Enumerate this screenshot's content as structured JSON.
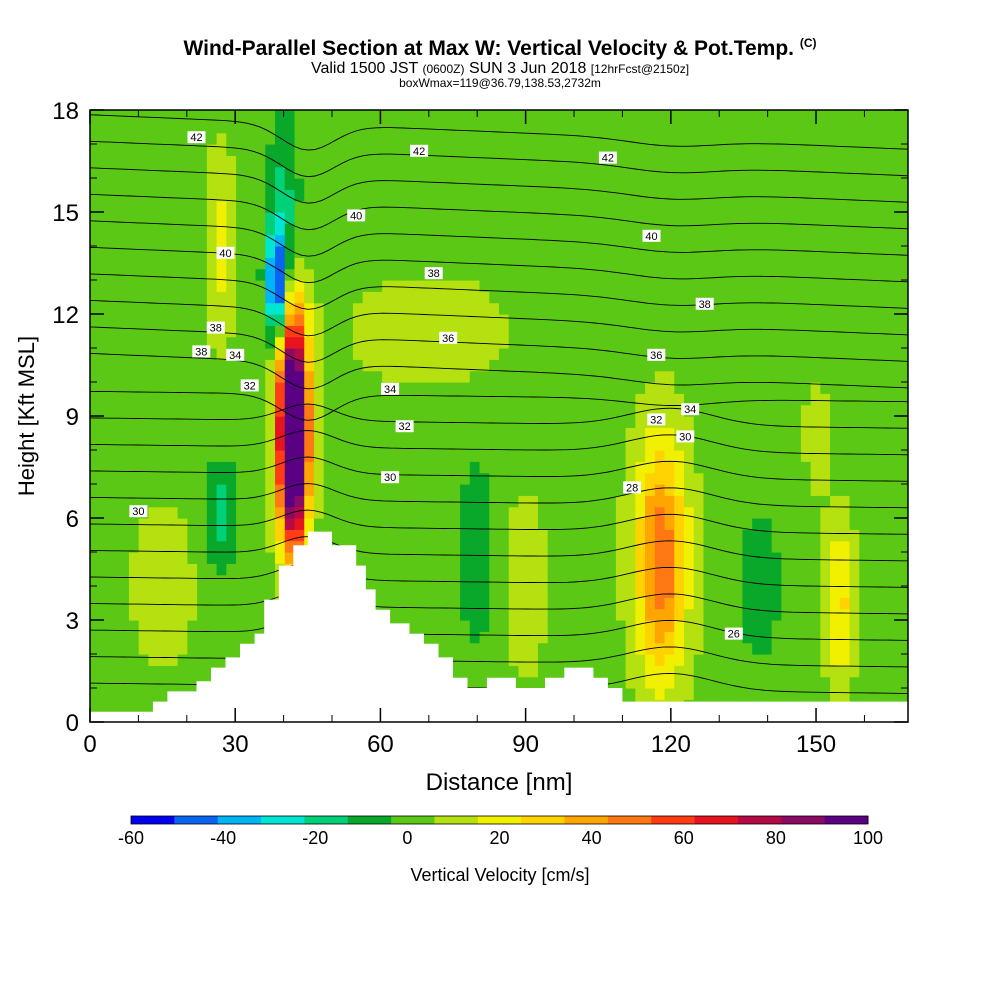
{
  "header": {
    "title": "Wind-Parallel Section at Max W: Vertical Velocity & Pot.Temp.",
    "copyright": "(C)",
    "valid_a": "Valid 1500 JST",
    "valid_b": "(0600Z)",
    "valid_c": "SUN 3 Jun 2018",
    "valid_d": "[12hrFcst@2150z]",
    "boxwmax": "boxWmax=119@36.79,138.53,2732m"
  },
  "chart_data": {
    "type": "heatmap",
    "xlabel": "Distance [nm]",
    "ylabel": "Height [Kft MSL]",
    "xlim": [
      0,
      169
    ],
    "ylim": [
      0,
      18
    ],
    "x_ticks": [
      0,
      30,
      60,
      90,
      120,
      150
    ],
    "y_ticks": [
      0,
      3,
      6,
      9,
      12,
      15,
      18
    ],
    "terrain": {
      "x": [
        0,
        13,
        13,
        16,
        16,
        22,
        22,
        25,
        25,
        28,
        28,
        31,
        31,
        34,
        34,
        36,
        36,
        39,
        39,
        42,
        42,
        45,
        45,
        50,
        50,
        55,
        55,
        57,
        57,
        59,
        59,
        62,
        62,
        66,
        66,
        69,
        69,
        72,
        72,
        75,
        75,
        78,
        78,
        82,
        82,
        88,
        88,
        94,
        94,
        98,
        98,
        104,
        104,
        107,
        107,
        110,
        110,
        169
      ],
      "h": [
        0.3,
        0.3,
        0.6,
        0.6,
        0.9,
        0.9,
        1.2,
        1.2,
        1.6,
        1.6,
        1.9,
        1.9,
        2.3,
        2.3,
        2.6,
        2.6,
        3.6,
        3.6,
        4.6,
        4.6,
        5.2,
        5.2,
        5.6,
        5.6,
        5.2,
        5.2,
        4.6,
        4.6,
        3.9,
        3.9,
        3.3,
        3.3,
        2.9,
        2.9,
        2.6,
        2.6,
        2.3,
        2.3,
        1.9,
        1.9,
        1.3,
        1.3,
        1.0,
        1.0,
        1.3,
        1.3,
        1.0,
        1.0,
        1.3,
        1.3,
        1.6,
        1.6,
        1.3,
        1.3,
        1.0,
        1.0,
        0.6,
        0.6
      ]
    },
    "vertical_velocity_features": [
      {
        "x": 42,
        "z": 8.5,
        "w": 110,
        "rx": 2.5,
        "rz": 3.0
      },
      {
        "x": 42,
        "z": 8.5,
        "w": 60,
        "rx": 3.8,
        "rz": 3.6
      },
      {
        "x": 38.5,
        "z": 12.8,
        "w": -62,
        "rx": 2.0,
        "rz": 1.5
      },
      {
        "x": 40,
        "z": 14.8,
        "w": -20,
        "rx": 3.0,
        "rz": 2.6
      },
      {
        "x": 27,
        "z": 14.0,
        "w": 20,
        "rx": 3.5,
        "rz": 3.0
      },
      {
        "x": 118,
        "z": 4.8,
        "w": 38,
        "rx": 4.5,
        "rz": 3.2
      },
      {
        "x": 118,
        "z": 4.8,
        "w": 18,
        "rx": 8.0,
        "rz": 4.5
      },
      {
        "x": 155,
        "z": 3.5,
        "w": 28,
        "rx": 3.5,
        "rz": 2.5
      },
      {
        "x": 90,
        "z": 4.0,
        "w": 14,
        "rx": 5.0,
        "rz": 3.0
      },
      {
        "x": 27,
        "z": 6.0,
        "w": -20,
        "rx": 3.0,
        "rz": 1.5
      },
      {
        "x": 70,
        "z": 11.5,
        "w": 12,
        "rx": 20.0,
        "rz": 2.0
      },
      {
        "x": 80,
        "z": 5.0,
        "w": -10,
        "rx": 4.0,
        "rz": 3.0
      },
      {
        "x": 138,
        "z": 4.0,
        "w": -12,
        "rx": 4.0,
        "rz": 2.0
      },
      {
        "x": 150,
        "z": 8.5,
        "w": 12,
        "rx": 3.0,
        "rz": 2.0
      },
      {
        "x": 15,
        "z": 4.0,
        "w": 12,
        "rx": 8.0,
        "rz": 3.0
      }
    ],
    "potential_temperature": {
      "interval": 1,
      "contour_labels": [
        {
          "value": "42",
          "x": 22,
          "z": 17.2
        },
        {
          "value": "42",
          "x": 68,
          "z": 16.8
        },
        {
          "value": "42",
          "x": 107,
          "z": 16.6
        },
        {
          "value": "40",
          "x": 28,
          "z": 13.8
        },
        {
          "value": "40",
          "x": 55,
          "z": 14.9
        },
        {
          "value": "40",
          "x": 116,
          "z": 14.3
        },
        {
          "value": "38",
          "x": 26,
          "z": 11.6
        },
        {
          "value": "38",
          "x": 71,
          "z": 13.2
        },
        {
          "value": "38",
          "x": 127,
          "z": 12.3
        },
        {
          "value": "38",
          "x": 23,
          "z": 10.9
        },
        {
          "value": "34",
          "x": 30,
          "z": 10.8
        },
        {
          "value": "36",
          "x": 74,
          "z": 11.3
        },
        {
          "value": "36",
          "x": 117,
          "z": 10.8
        },
        {
          "value": "32",
          "x": 33,
          "z": 9.9
        },
        {
          "value": "34",
          "x": 62,
          "z": 9.8
        },
        {
          "value": "34",
          "x": 124,
          "z": 9.2
        },
        {
          "value": "32",
          "x": 65,
          "z": 8.7
        },
        {
          "value": "32",
          "x": 117,
          "z": 8.9
        },
        {
          "value": "30",
          "x": 123,
          "z": 8.4
        },
        {
          "value": "30",
          "x": 62,
          "z": 7.2
        },
        {
          "value": "30",
          "x": 10,
          "z": 6.2
        },
        {
          "value": "28",
          "x": 112,
          "z": 6.9
        },
        {
          "value": "26",
          "x": 133,
          "z": 2.6
        }
      ]
    },
    "colorbar": {
      "label": "Vertical Velocity [cm/s]",
      "ticks": [
        "-60",
        "-40",
        "-20",
        "0",
        "20",
        "40",
        "60",
        "80",
        "100"
      ],
      "bounds": [
        -60,
        -50,
        -40,
        -30,
        -20,
        -10,
        0,
        10,
        20,
        30,
        40,
        50,
        60,
        70,
        80,
        90,
        100
      ],
      "colors": [
        "#0000f0",
        "#0a64f0",
        "#00b4f5",
        "#00e6d2",
        "#00d078",
        "#0aa82a",
        "#5ac814",
        "#b4e10f",
        "#f0f000",
        "#ffd200",
        "#ffa500",
        "#ff7814",
        "#ff3c14",
        "#e6141e",
        "#b40a46",
        "#8c0a64",
        "#5a0082"
      ]
    }
  }
}
